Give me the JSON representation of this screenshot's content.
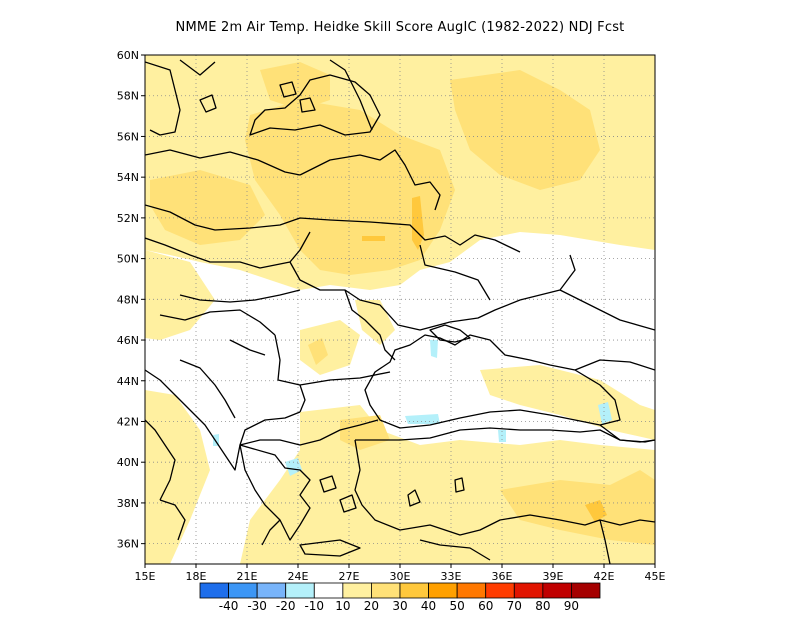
{
  "title": "NMME  2m Air Temp. Heidke Skill Score AugIC (1982-2022) NDJ Fcst",
  "lat_labels": [
    "60N",
    "58N",
    "56N",
    "54N",
    "52N",
    "50N",
    "48N",
    "46N",
    "44N",
    "42N",
    "40N",
    "38N",
    "36N"
  ],
  "lon_labels": [
    "15E",
    "18E",
    "21E",
    "24E",
    "27E",
    "30E",
    "33E",
    "36E",
    "39E",
    "42E",
    "45E"
  ],
  "colorbar": {
    "colors": [
      "#1e6eeb",
      "#3c96f5",
      "#78b4fa",
      "#b4f0fa",
      "#ffffff",
      "#fff0a0",
      "#ffe178",
      "#ffc83c",
      "#ffa000",
      "#ff7800",
      "#ff3c00",
      "#e11400",
      "#c00000",
      "#a50000"
    ],
    "labels": [
      "-40",
      "-30",
      "-20",
      "-10",
      "10",
      "20",
      "30",
      "40",
      "50",
      "60",
      "70",
      "80",
      "90"
    ]
  },
  "chart_data": {
    "type": "heatmap",
    "title": "NMME  2m Air Temp. Heidke Skill Score AugIC (1982-2022) NDJ Fcst",
    "xlim": [
      15,
      45
    ],
    "ylim": [
      35,
      60
    ],
    "x_ticks": [
      "15E",
      "18E",
      "21E",
      "24E",
      "27E",
      "30E",
      "33E",
      "36E",
      "39E",
      "42E",
      "45E"
    ],
    "y_ticks": [
      "60N",
      "58N",
      "56N",
      "54N",
      "52N",
      "50N",
      "48N",
      "46N",
      "44N",
      "42N",
      "40N",
      "38N",
      "36N"
    ],
    "grid": true,
    "colorbar_levels": [
      -40,
      -30,
      -20,
      -10,
      10,
      20,
      30,
      40,
      50,
      60,
      70,
      80,
      90
    ],
    "regions": [
      {
        "fill": "#fff0a0",
        "lon_range": [
          17,
          45
        ],
        "lat_range": [
          50,
          60
        ],
        "level": "10-20"
      },
      {
        "fill": "#ffe178",
        "lon_range": [
          24,
          34
        ],
        "lat_range": [
          50,
          56
        ],
        "level": "20-30"
      },
      {
        "fill": "#ffe178",
        "lon_range": [
          35,
          42
        ],
        "lat_range": [
          56,
          59
        ],
        "level": "20-30"
      },
      {
        "fill": "#ffc83c",
        "lon_range": [
          28,
          31
        ],
        "lat_range": [
          50.5,
          52.5
        ],
        "level": "30-40"
      },
      {
        "fill": "#fff0a0",
        "lon_range": [
          24,
          45
        ],
        "lat_range": [
          35,
          41
        ],
        "level": "10-20"
      },
      {
        "fill": "#ffe178",
        "lon_range": [
          40,
          45
        ],
        "lat_range": [
          36,
          38
        ],
        "level": "20-30"
      },
      {
        "fill": "#ffc83c",
        "lon_range": [
          42,
          43
        ],
        "lat_range": [
          36.5,
          37.5
        ],
        "level": "30-40"
      },
      {
        "fill": "#b4f0fa",
        "lon_range": [
          22,
          26
        ],
        "lat_range": [
          40,
          42
        ],
        "level": "-10 to -20"
      },
      {
        "fill": "#b4f0fa",
        "lon_range": [
          31,
          34
        ],
        "lat_range": [
          41.5,
          42.5
        ],
        "level": "-10 to -20"
      }
    ]
  }
}
